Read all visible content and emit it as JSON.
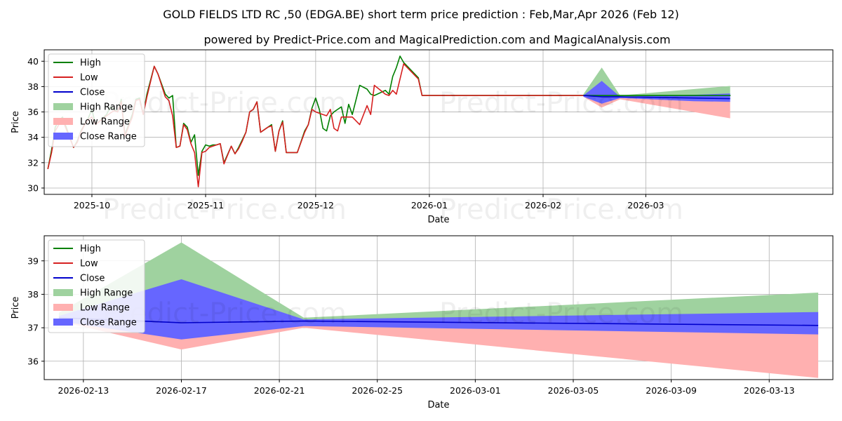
{
  "title_line1": "GOLD FIELDS LTD RC ,50 (EDGA.BE) short term price prediction : Feb,Mar,Apr 2026 (Feb 12)",
  "title_line2": "powered by Predict-Price.com and MagicalPrediction.com and MagicalAnalysis.com",
  "watermark": "Predict-Price.com",
  "colors": {
    "high": "#008000",
    "low": "#d62020",
    "close": "#0000cc",
    "high_range": "#9fd29f",
    "low_range": "#ffb0b0",
    "close_range": "#6666ff",
    "grid": "#b0b0b0"
  },
  "legend": [
    "High",
    "Low",
    "Close",
    "High Range",
    "Low Range",
    "Close Range"
  ],
  "chart_data": [
    {
      "type": "line",
      "panel": "top",
      "xlabel": "Date",
      "ylabel": "Price",
      "xlim": [
        -13,
        202
      ],
      "ylim": [
        29.5,
        40.9
      ],
      "x_unit": "days since 2025-10-01",
      "x_ticks": [
        {
          "x": 0,
          "label": "2025-10"
        },
        {
          "x": 31,
          "label": "2025-11"
        },
        {
          "x": 61,
          "label": "2025-12"
        },
        {
          "x": 92,
          "label": "2026-01"
        },
        {
          "x": 123,
          "label": "2026-02"
        },
        {
          "x": 151,
          "label": "2026-03"
        }
      ],
      "y_ticks": [
        30,
        32,
        34,
        36,
        38,
        40
      ],
      "high": {
        "x": [
          -12,
          -11,
          -10,
          -9,
          -8,
          -5,
          -4,
          -3,
          -2,
          -1,
          0,
          1,
          4,
          5,
          6,
          7,
          8,
          9,
          11,
          12,
          13,
          14,
          15,
          17,
          18,
          19,
          20,
          21,
          22,
          23,
          24,
          25,
          26,
          27,
          28,
          29,
          30,
          31,
          32,
          33,
          34,
          35,
          36,
          38,
          39,
          40,
          41,
          42,
          43,
          44,
          45,
          46,
          47,
          48,
          49,
          50,
          51,
          52,
          53,
          54,
          55,
          56,
          58,
          59,
          60,
          61,
          62,
          63,
          64,
          65,
          66,
          67,
          68,
          69,
          70,
          71,
          73,
          75,
          76,
          77,
          80,
          81,
          82,
          83,
          84,
          85,
          89,
          90,
          134,
          139,
          144,
          164,
          174,
          164
        ],
        "y": [
          31.5,
          33.0,
          34.8,
          35.3,
          35.6,
          33.2,
          33.7,
          34.5,
          35.0,
          35.5,
          36.2,
          35.0,
          35.8,
          36.4,
          36.2,
          36.0,
          37.0,
          34.2,
          35.8,
          37.0,
          37.1,
          35.8,
          37.4,
          39.6,
          39.0,
          38.2,
          37.4,
          37.1,
          37.3,
          33.2,
          33.3,
          35.1,
          34.8,
          33.6,
          34.2,
          31.0,
          32.9,
          33.4,
          33.3,
          33.4,
          33.4,
          33.5,
          32.0,
          33.3,
          32.7,
          33.2,
          33.8,
          34.4,
          36.0,
          36.2,
          36.8,
          34.4,
          34.6,
          34.8,
          35.0,
          32.9,
          34.5,
          35.3,
          32.8,
          32.8,
          32.8,
          32.8,
          34.5,
          35.0,
          36.3,
          37.1,
          36.2,
          34.7,
          34.5,
          35.7,
          36.0,
          36.2,
          36.4,
          35.1,
          36.6,
          35.8,
          38.1,
          37.8,
          37.4,
          37.3,
          37.7,
          37.4,
          38.8,
          39.5,
          40.4,
          39.9,
          38.7,
          37.3,
          37.3,
          37.3,
          37.3,
          37.3,
          37.3,
          37.3
        ]
      },
      "low": {
        "x": [
          -12,
          -11,
          -10,
          -9,
          -8,
          -5,
          -4,
          -3,
          -2,
          -1,
          0,
          1,
          4,
          5,
          6,
          7,
          8,
          9,
          11,
          12,
          13,
          14,
          15,
          17,
          18,
          19,
          20,
          21,
          22,
          23,
          24,
          25,
          26,
          27,
          28,
          29,
          30,
          31,
          32,
          33,
          34,
          35,
          36,
          38,
          39,
          40,
          41,
          42,
          43,
          44,
          45,
          46,
          47,
          48,
          49,
          50,
          51,
          52,
          53,
          54,
          55,
          56,
          58,
          59,
          60,
          61,
          62,
          63,
          64,
          65,
          66,
          67,
          68,
          69,
          70,
          71,
          73,
          75,
          76,
          77,
          80,
          81,
          82,
          83,
          84,
          85,
          89,
          90,
          134
        ],
        "y": [
          31.5,
          32.8,
          34.5,
          35.0,
          35.4,
          33.2,
          33.6,
          34.4,
          35.0,
          35.4,
          35.6,
          35.0,
          35.7,
          35.9,
          36.1,
          36.0,
          36.8,
          34.1,
          35.6,
          36.9,
          37.0,
          35.8,
          37.2,
          39.6,
          39.0,
          38.1,
          37.2,
          36.9,
          35.7,
          33.2,
          33.3,
          35.0,
          34.6,
          33.5,
          32.8,
          30.1,
          32.8,
          32.9,
          33.2,
          33.3,
          33.4,
          33.5,
          31.9,
          33.3,
          32.7,
          33.1,
          33.7,
          34.4,
          36.0,
          36.2,
          36.8,
          34.4,
          34.6,
          34.8,
          34.9,
          32.9,
          34.5,
          35.2,
          32.8,
          32.8,
          32.8,
          32.8,
          34.4,
          35.0,
          36.2,
          36.0,
          35.9,
          35.8,
          35.7,
          36.2,
          34.7,
          34.5,
          35.6,
          35.6,
          35.6,
          35.6,
          35.0,
          36.5,
          35.8,
          38.1,
          37.4,
          37.3,
          37.7,
          37.4,
          38.6,
          39.8,
          38.6,
          37.3,
          37.3
        ]
      },
      "close": {
        "x": [
          134,
          139,
          144,
          164,
          174
        ],
        "y": [
          37.3,
          37.2,
          37.2,
          37.1,
          37.05
        ]
      },
      "high_range": {
        "x": [
          134,
          139,
          144,
          164,
          174
        ],
        "upper": [
          37.4,
          39.5,
          37.3,
          37.8,
          38.05
        ],
        "lower": [
          37.2,
          37.0,
          37.1,
          37.0,
          37.0
        ]
      },
      "low_range": {
        "x": [
          134,
          139,
          144,
          164,
          174
        ],
        "upper": [
          37.3,
          37.0,
          37.1,
          36.9,
          36.9
        ],
        "lower": [
          37.2,
          36.35,
          37.0,
          36.0,
          35.5
        ]
      },
      "close_range": {
        "x": [
          134,
          139,
          144,
          164,
          174
        ],
        "upper": [
          37.3,
          38.45,
          37.2,
          37.35,
          37.45
        ],
        "lower": [
          37.2,
          36.65,
          37.1,
          36.85,
          36.8
        ]
      }
    },
    {
      "type": "line",
      "panel": "bottom",
      "xlabel": "Date",
      "ylabel": "Price",
      "xlim": [
        -0.6,
        31.6
      ],
      "ylim": [
        35.45,
        39.75
      ],
      "x_unit": "days since 2026-02-12",
      "x_ticks": [
        {
          "x": 1,
          "label": "2026-02-13"
        },
        {
          "x": 5,
          "label": "2026-02-17"
        },
        {
          "x": 9,
          "label": "2026-02-21"
        },
        {
          "x": 13,
          "label": "2026-02-25"
        },
        {
          "x": 17,
          "label": "2026-03-01"
        },
        {
          "x": 21,
          "label": "2026-03-05"
        },
        {
          "x": 25,
          "label": "2026-03-09"
        },
        {
          "x": 29,
          "label": "2026-03-13"
        }
      ],
      "y_ticks": [
        36,
        37,
        38,
        39
      ],
      "close": {
        "x": [
          0,
          5,
          10,
          31
        ],
        "y": [
          37.3,
          37.15,
          37.2,
          37.07
        ]
      },
      "high_range": {
        "x": [
          0,
          5,
          10,
          31
        ],
        "upper": [
          37.45,
          39.55,
          37.3,
          38.05
        ],
        "lower": [
          37.2,
          37.0,
          37.05,
          37.0
        ]
      },
      "low_range": {
        "x": [
          0,
          5,
          10,
          31
        ],
        "upper": [
          37.3,
          37.0,
          37.1,
          36.85
        ],
        "lower": [
          37.2,
          36.35,
          37.0,
          35.5
        ]
      },
      "close_range": {
        "x": [
          0,
          5,
          10,
          31
        ],
        "upper": [
          37.35,
          38.45,
          37.25,
          37.47
        ],
        "lower": [
          37.2,
          36.65,
          37.05,
          36.8
        ]
      }
    }
  ]
}
